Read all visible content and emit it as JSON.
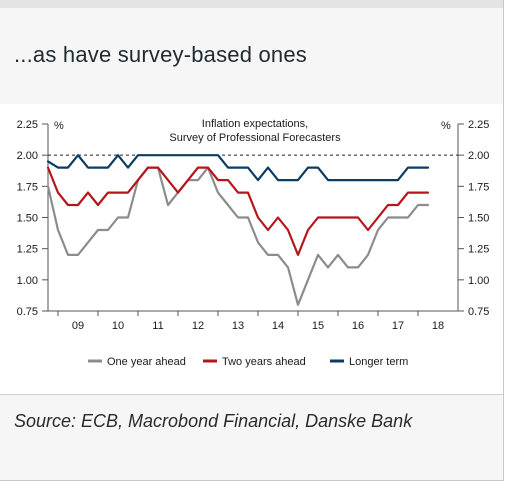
{
  "header": {
    "title": "...as have survey-based ones"
  },
  "source": "Source: ECB, Macrobond Financial, Danske Bank",
  "colors": {
    "one_year": "#8c8c8c",
    "two_years": "#b3161b",
    "longer_term": "#0c3c62"
  },
  "chart_data": {
    "type": "line",
    "title": "Inflation expectations,",
    "subtitle": "Survey of Professional Forecasters",
    "unit_left": "%",
    "unit_right": "%",
    "ylim": [
      0.75,
      2.25
    ],
    "yticks": [
      "2.25",
      "2.00",
      "1.75",
      "1.50",
      "1.25",
      "1.00",
      "0.75"
    ],
    "xlim": [
      2008.75,
      2019.0
    ],
    "xticks": [
      "09",
      "10",
      "11",
      "12",
      "13",
      "14",
      "15",
      "16",
      "17",
      "18"
    ],
    "reference_line": 2.0,
    "legend_position": "bottom",
    "series": [
      {
        "name": "One year ahead",
        "x": [
          2008.75,
          2009.0,
          2009.25,
          2009.5,
          2009.75,
          2010.0,
          2010.25,
          2010.5,
          2010.75,
          2011.0,
          2011.25,
          2011.5,
          2011.75,
          2012.0,
          2012.25,
          2012.5,
          2012.75,
          2013.0,
          2013.25,
          2013.5,
          2013.75,
          2014.0,
          2014.25,
          2014.5,
          2014.75,
          2015.0,
          2015.25,
          2015.5,
          2015.75,
          2016.0,
          2016.25,
          2016.5,
          2016.75,
          2017.0,
          2017.25,
          2017.5,
          2017.75,
          2018.0,
          2018.25
        ],
        "values": [
          1.75,
          1.4,
          1.2,
          1.2,
          1.3,
          1.4,
          1.4,
          1.5,
          1.5,
          1.8,
          1.9,
          1.9,
          1.6,
          1.7,
          1.8,
          1.8,
          1.9,
          1.7,
          1.6,
          1.5,
          1.5,
          1.3,
          1.2,
          1.2,
          1.1,
          0.8,
          1.0,
          1.2,
          1.1,
          1.2,
          1.1,
          1.1,
          1.2,
          1.4,
          1.5,
          1.5,
          1.5,
          1.6,
          1.6
        ]
      },
      {
        "name": "Two years ahead",
        "x": [
          2008.75,
          2009.0,
          2009.25,
          2009.5,
          2009.75,
          2010.0,
          2010.25,
          2010.5,
          2010.75,
          2011.0,
          2011.25,
          2011.5,
          2011.75,
          2012.0,
          2012.25,
          2012.5,
          2012.75,
          2013.0,
          2013.25,
          2013.5,
          2013.75,
          2014.0,
          2014.25,
          2014.5,
          2014.75,
          2015.0,
          2015.25,
          2015.5,
          2015.75,
          2016.0,
          2016.25,
          2016.5,
          2016.75,
          2017.0,
          2017.25,
          2017.5,
          2017.75,
          2018.0,
          2018.25
        ],
        "values": [
          1.9,
          1.7,
          1.6,
          1.6,
          1.7,
          1.6,
          1.7,
          1.7,
          1.7,
          1.8,
          1.9,
          1.9,
          1.8,
          1.7,
          1.8,
          1.9,
          1.9,
          1.8,
          1.8,
          1.7,
          1.7,
          1.5,
          1.4,
          1.5,
          1.4,
          1.2,
          1.4,
          1.5,
          1.5,
          1.5,
          1.5,
          1.5,
          1.4,
          1.5,
          1.6,
          1.6,
          1.7,
          1.7,
          1.7
        ]
      },
      {
        "name": "Longer term",
        "x": [
          2008.75,
          2009.0,
          2009.25,
          2009.5,
          2009.75,
          2010.0,
          2010.25,
          2010.5,
          2010.75,
          2011.0,
          2011.25,
          2011.5,
          2011.75,
          2012.0,
          2012.25,
          2012.5,
          2012.75,
          2013.0,
          2013.25,
          2013.5,
          2013.75,
          2014.0,
          2014.25,
          2014.5,
          2014.75,
          2015.0,
          2015.25,
          2015.5,
          2015.75,
          2016.0,
          2016.25,
          2016.5,
          2016.75,
          2017.0,
          2017.25,
          2017.5,
          2017.75,
          2018.0,
          2018.25
        ],
        "values": [
          1.95,
          1.9,
          1.9,
          2.0,
          1.9,
          1.9,
          1.9,
          2.0,
          1.9,
          2.0,
          2.0,
          2.0,
          2.0,
          2.0,
          2.0,
          2.0,
          2.0,
          2.0,
          1.9,
          1.9,
          1.9,
          1.8,
          1.9,
          1.8,
          1.8,
          1.8,
          1.9,
          1.9,
          1.8,
          1.8,
          1.8,
          1.8,
          1.8,
          1.8,
          1.8,
          1.8,
          1.9,
          1.9,
          1.9
        ]
      }
    ]
  }
}
